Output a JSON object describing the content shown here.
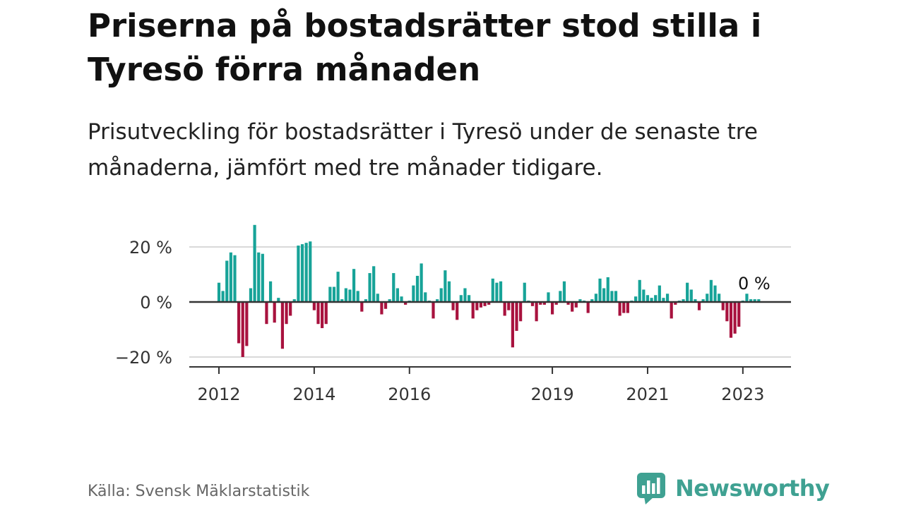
{
  "title": "Priserna på bostadsrätter stod stilla i Tyresö förra månaden",
  "subtitle": "Prisutveckling för bostadsrätter i Tyresö under de senaste tre månaderna, jämfört med tre månader tidigare.",
  "source": "Källa: Svensk Mäklarstatistik",
  "brand": {
    "name": "Newsworthy",
    "logo_icon": "bar-chart-speech-bubble-icon"
  },
  "colors": {
    "positive": "#17a398",
    "negative": "#a8123e",
    "zero_line": "#333333",
    "grid": "#d9d9d9",
    "brand": "#3fa192"
  },
  "chart_data": {
    "type": "bar",
    "title": "Priserna på bostadsrätter stod stilla i Tyresö förra månaden",
    "xlabel": "",
    "ylabel": "",
    "ylim": [
      -23,
      30
    ],
    "x_start": "2012-01",
    "frequency": "monthly",
    "unit": "%",
    "grid": true,
    "y_ticks": [
      {
        "value": 20,
        "label": "20 %"
      },
      {
        "value": 0,
        "label": "0 %"
      },
      {
        "value": -20,
        "label": "−20 %"
      }
    ],
    "x_ticks": [
      {
        "index": 0,
        "label": "2012"
      },
      {
        "index": 24,
        "label": "2014"
      },
      {
        "index": 48,
        "label": "2016"
      },
      {
        "index": 84,
        "label": "2019"
      },
      {
        "index": 108,
        "label": "2021"
      },
      {
        "index": 132,
        "label": "2023"
      }
    ],
    "annotation": {
      "index": 132,
      "label": "0 %"
    },
    "values": [
      7,
      4,
      15,
      18,
      17,
      -15,
      -20,
      -16,
      5,
      28,
      18,
      17.5,
      -8,
      7.5,
      -7.5,
      1.5,
      -17,
      -8,
      -5,
      1,
      20.5,
      21,
      21.5,
      22,
      -3,
      -8,
      -9.5,
      -8,
      5.5,
      5.5,
      11,
      1,
      5,
      4.5,
      12,
      4,
      -3.5,
      1,
      10.5,
      13,
      3,
      -4.5,
      -2.5,
      1,
      10.5,
      5,
      2,
      -1,
      0.5,
      6,
      9.5,
      14,
      3.5,
      0.5,
      -6,
      1,
      5,
      11.5,
      7.5,
      -3,
      -6.5,
      2.5,
      5,
      2.5,
      -6,
      -3,
      -2,
      -1.5,
      -1,
      8.5,
      7,
      7.5,
      -5,
      -3,
      -16.5,
      -10.5,
      -7,
      7,
      0.5,
      -1.5,
      -7,
      -1,
      -1,
      3.5,
      -4.5,
      -1,
      4,
      7.5,
      -1,
      -3.5,
      -2,
      1,
      0.5,
      -4,
      1,
      3,
      8.5,
      5,
      9,
      4,
      4,
      -5,
      -4,
      -4,
      0.5,
      2,
      8,
      4.5,
      2.5,
      1.5,
      2.5,
      6,
      1.5,
      3,
      -6,
      -1,
      0.5,
      1,
      7,
      4.5,
      1,
      -3,
      1,
      3,
      8,
      6,
      3,
      -3,
      -7,
      -13,
      -11.5,
      -9,
      0.5,
      3,
      1,
      1,
      1
    ]
  }
}
